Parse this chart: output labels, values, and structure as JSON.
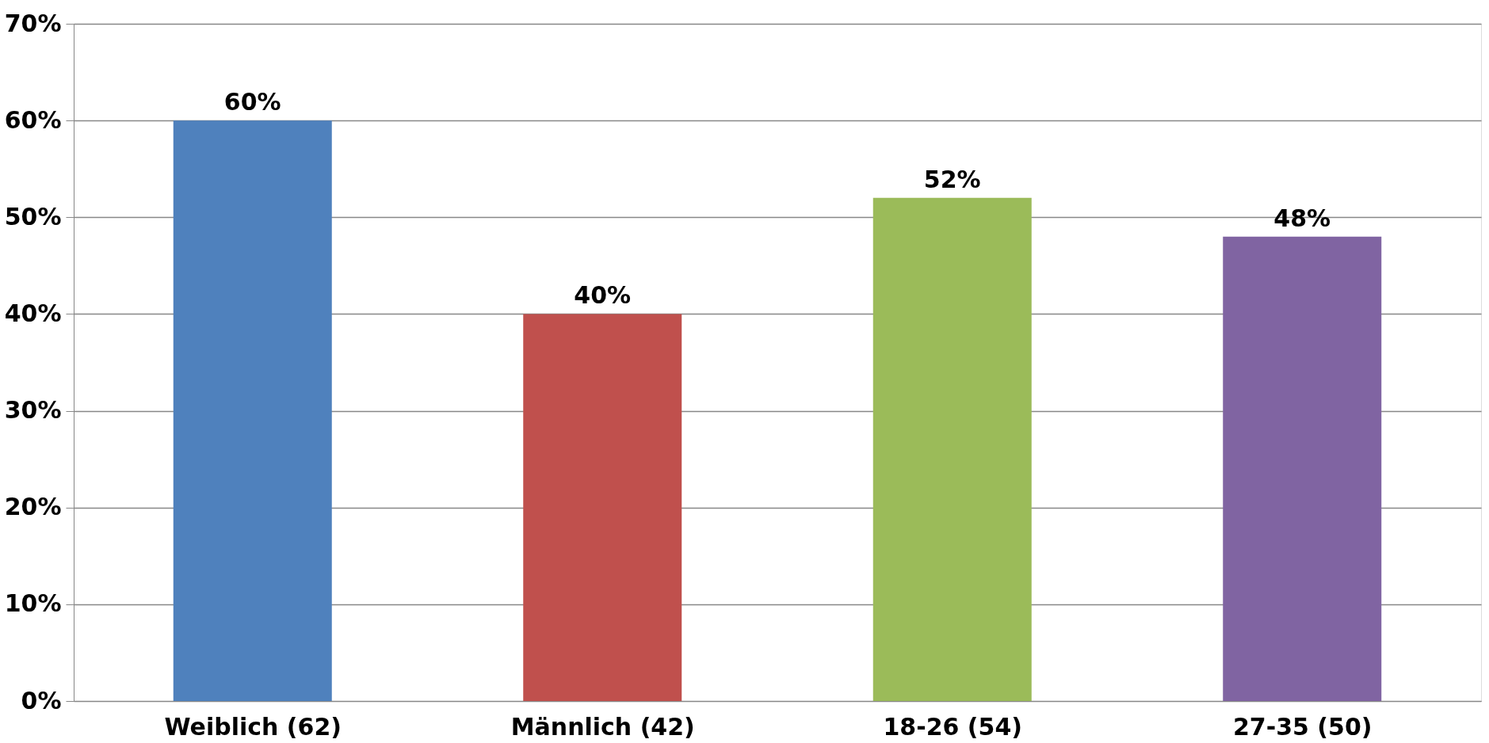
{
  "chart_data": {
    "type": "bar",
    "categories": [
      "Weiblich (62)",
      "Männlich (42)",
      "18-26 (54)",
      "27-35 (50)"
    ],
    "values": [
      60,
      40,
      52,
      48
    ],
    "colors": [
      "#4f81bd",
      "#c0504d",
      "#9bbb59",
      "#8064a2"
    ],
    "value_labels": [
      "60%",
      "40%",
      "52%",
      "48%"
    ],
    "ylim": [
      0,
      70
    ],
    "yticks": [
      {
        "value": 0,
        "label": "0%"
      },
      {
        "value": 10,
        "label": "10%"
      },
      {
        "value": 20,
        "label": "20%"
      },
      {
        "value": 30,
        "label": "30%"
      },
      {
        "value": 40,
        "label": "40%"
      },
      {
        "value": 50,
        "label": "50%"
      },
      {
        "value": 60,
        "label": "60%"
      },
      {
        "value": 70,
        "label": "70%"
      }
    ],
    "grid": "y"
  }
}
